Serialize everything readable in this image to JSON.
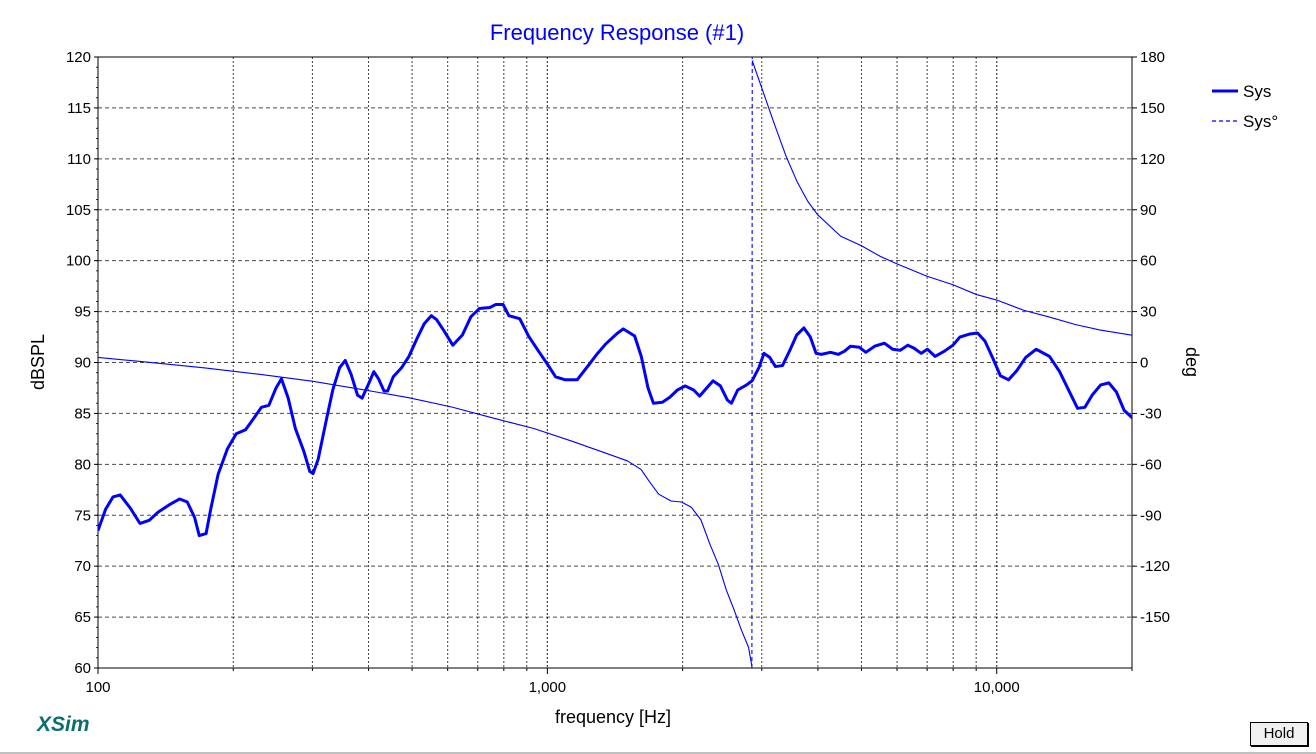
{
  "app": {
    "brand": "XSim",
    "hold_label": "Hold"
  },
  "colors": {
    "series": "#0000ff",
    "grid": "#000000",
    "brand": "#0a6e6e"
  },
  "chart_data": {
    "type": "line",
    "title": "Frequency Response (#1)",
    "xlabel": "frequency [Hz]",
    "ylabel": "dBSPL",
    "y2label": "deg",
    "xscale": "log",
    "xlim": [
      100,
      20000
    ],
    "ylim": [
      60,
      120
    ],
    "y2lim": [
      -180,
      180
    ],
    "x_tick_labels": [
      "100",
      "1,000",
      "10,000"
    ],
    "x_tick_values": [
      100,
      1000,
      10000
    ],
    "y_ticks": [
      60,
      65,
      70,
      75,
      80,
      85,
      90,
      95,
      100,
      105,
      110,
      115,
      120
    ],
    "y2_ticks": [
      -150,
      -120,
      -90,
      -60,
      -30,
      0,
      30,
      60,
      90,
      120,
      150,
      180
    ],
    "grid": true,
    "legend_position": "right",
    "series": [
      {
        "name": "Sys",
        "axis": "left",
        "style": "solid-thick",
        "points": [
          [
            100,
            73.5
          ],
          [
            104,
            75.6
          ],
          [
            108,
            76.8
          ],
          [
            112,
            77
          ],
          [
            118,
            75.7
          ],
          [
            124,
            74.2
          ],
          [
            130,
            74.5
          ],
          [
            136,
            75.3
          ],
          [
            145,
            76.1
          ],
          [
            152,
            76.6
          ],
          [
            158,
            76.3
          ],
          [
            164,
            74.8
          ],
          [
            168,
            73
          ],
          [
            174,
            73.2
          ],
          [
            178,
            75.5
          ],
          [
            185,
            79
          ],
          [
            194,
            81.5
          ],
          [
            203,
            83
          ],
          [
            213,
            83.4
          ],
          [
            222,
            84.5
          ],
          [
            231,
            85.6
          ],
          [
            240,
            85.8
          ],
          [
            249,
            87.5
          ],
          [
            256,
            88.4
          ],
          [
            265,
            86.5
          ],
          [
            275,
            83.5
          ],
          [
            287,
            81.3
          ],
          [
            296,
            79.3
          ],
          [
            301,
            79.1
          ],
          [
            309,
            80.5
          ],
          [
            322,
            84.3
          ],
          [
            333,
            87.3
          ],
          [
            345,
            89.5
          ],
          [
            355,
            90.2
          ],
          [
            366,
            88.8
          ],
          [
            378,
            86.8
          ],
          [
            387,
            86.5
          ],
          [
            401,
            88
          ],
          [
            411,
            89.1
          ],
          [
            421,
            88.4
          ],
          [
            433,
            87.2
          ],
          [
            441,
            87.2
          ],
          [
            454,
            88.6
          ],
          [
            474,
            89.5
          ],
          [
            492,
            90.6
          ],
          [
            512,
            92.3
          ],
          [
            532,
            93.8
          ],
          [
            552,
            94.6
          ],
          [
            567,
            94.2
          ],
          [
            589,
            93.1
          ],
          [
            616,
            91.7
          ],
          [
            647,
            92.7
          ],
          [
            676,
            94.5
          ],
          [
            706,
            95.3
          ],
          [
            745,
            95.4
          ],
          [
            768,
            95.7
          ],
          [
            797,
            95.7
          ],
          [
            821,
            94.6
          ],
          [
            868,
            94.3
          ],
          [
            908,
            92.6
          ],
          [
            953,
            91.2
          ],
          [
            998,
            89.9
          ],
          [
            1043,
            88.6
          ],
          [
            1096,
            88.3
          ],
          [
            1165,
            88.3
          ],
          [
            1238,
            89.8
          ],
          [
            1288,
            90.8
          ],
          [
            1347,
            91.8
          ],
          [
            1425,
            92.8
          ],
          [
            1475,
            93.3
          ],
          [
            1564,
            92.6
          ],
          [
            1618,
            90.6
          ],
          [
            1675,
            87.5
          ],
          [
            1722,
            86
          ],
          [
            1803,
            86.1
          ],
          [
            1874,
            86.6
          ],
          [
            1947,
            87.3
          ],
          [
            2026,
            87.7
          ],
          [
            2116,
            87.3
          ],
          [
            2182,
            86.7
          ],
          [
            2262,
            87.5
          ],
          [
            2337,
            88.2
          ],
          [
            2427,
            87.7
          ],
          [
            2516,
            86.3
          ],
          [
            2568,
            86
          ],
          [
            2652,
            87.3
          ],
          [
            2775,
            87.8
          ],
          [
            2855,
            88.2
          ],
          [
            2957,
            89.5
          ],
          [
            3034,
            90.9
          ],
          [
            3125,
            90.5
          ],
          [
            3218,
            89.6
          ],
          [
            3336,
            89.7
          ],
          [
            3465,
            91.2
          ],
          [
            3588,
            92.7
          ],
          [
            3722,
            93.4
          ],
          [
            3847,
            92.5
          ],
          [
            3963,
            90.9
          ],
          [
            4071,
            90.8
          ],
          [
            4266,
            91
          ],
          [
            4440,
            90.8
          ],
          [
            4580,
            91.1
          ],
          [
            4729,
            91.6
          ],
          [
            4944,
            91.5
          ],
          [
            5113,
            91
          ],
          [
            5350,
            91.6
          ],
          [
            5622,
            91.9
          ],
          [
            5868,
            91.3
          ],
          [
            6100,
            91.2
          ],
          [
            6341,
            91.7
          ],
          [
            6549,
            91.4
          ],
          [
            6789,
            90.9
          ],
          [
            7010,
            91.3
          ],
          [
            7290,
            90.6
          ],
          [
            7640,
            91.1
          ],
          [
            7991,
            91.7
          ],
          [
            8279,
            92.5
          ],
          [
            8717,
            92.8
          ],
          [
            9064,
            92.9
          ],
          [
            9416,
            92.1
          ],
          [
            9805,
            90.4
          ],
          [
            10191,
            88.7
          ],
          [
            10624,
            88.3
          ],
          [
            11082,
            89.2
          ],
          [
            11601,
            90.5
          ],
          [
            12238,
            91.3
          ],
          [
            13108,
            90.6
          ],
          [
            13803,
            89.1
          ],
          [
            14562,
            87
          ],
          [
            15131,
            85.5
          ],
          [
            15707,
            85.6
          ],
          [
            16309,
            86.8
          ],
          [
            17041,
            87.8
          ],
          [
            17761,
            88
          ],
          [
            18468,
            87.1
          ],
          [
            19211,
            85.3
          ],
          [
            19990,
            84.6
          ],
          [
            20700,
            83.8
          ],
          [
            21500,
            82.3
          ],
          [
            22300,
            81.3
          ]
        ]
      },
      {
        "name": "Sys°",
        "axis": "right",
        "style": "dashed-thin",
        "points": [
          [
            100,
            3
          ],
          [
            130,
            0.1
          ],
          [
            173,
            -3.2
          ],
          [
            228,
            -6.9
          ],
          [
            301,
            -11.1
          ],
          [
            383,
            -15.7
          ],
          [
            493,
            -20.8
          ],
          [
            614,
            -26.3
          ],
          [
            754,
            -32.6
          ],
          [
            933,
            -38.9
          ],
          [
            1132,
            -46.3
          ],
          [
            1335,
            -53
          ],
          [
            1508,
            -58
          ],
          [
            1616,
            -63
          ],
          [
            1685,
            -70
          ],
          [
            1769,
            -77.6
          ],
          [
            1884,
            -81.6
          ],
          [
            1988,
            -82.2
          ],
          [
            2091,
            -85.3
          ],
          [
            2197,
            -92.8
          ],
          [
            2301,
            -107.2
          ],
          [
            2401,
            -118.9
          ],
          [
            2502,
            -134.1
          ],
          [
            2602,
            -145.6
          ],
          [
            2703,
            -157.7
          ],
          [
            2803,
            -167.7
          ],
          [
            2852,
            -179
          ],
          [
            2857,
            178
          ],
          [
            2895,
            173.5
          ],
          [
            2998,
            162
          ],
          [
            3096,
            151.4
          ],
          [
            3198,
            140.7
          ],
          [
            3397,
            121.6
          ],
          [
            3597,
            106.4
          ],
          [
            3797,
            95
          ],
          [
            3996,
            87
          ],
          [
            4497,
            74.4
          ],
          [
            4999,
            68.8
          ],
          [
            5499,
            62.6
          ],
          [
            5997,
            58.1
          ],
          [
            6996,
            50.8
          ],
          [
            7994,
            45.8
          ],
          [
            8998,
            40.1
          ],
          [
            9996,
            36.8
          ],
          [
            11504,
            30.7
          ],
          [
            13009,
            27
          ],
          [
            14988,
            22.3
          ],
          [
            17001,
            19.1
          ],
          [
            20006,
            16.1
          ],
          [
            22300,
            14
          ]
        ]
      }
    ]
  }
}
